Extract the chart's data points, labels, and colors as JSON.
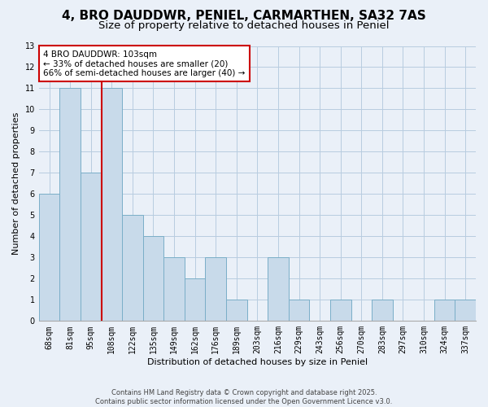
{
  "title": "4, BRO DAUDDWR, PENIEL, CARMARTHEN, SA32 7AS",
  "subtitle": "Size of property relative to detached houses in Peniel",
  "xlabel": "Distribution of detached houses by size in Peniel",
  "ylabel": "Number of detached properties",
  "categories": [
    "68sqm",
    "81sqm",
    "95sqm",
    "108sqm",
    "122sqm",
    "135sqm",
    "149sqm",
    "162sqm",
    "176sqm",
    "189sqm",
    "203sqm",
    "216sqm",
    "229sqm",
    "243sqm",
    "256sqm",
    "270sqm",
    "283sqm",
    "297sqm",
    "310sqm",
    "324sqm",
    "337sqm"
  ],
  "values": [
    6,
    11,
    7,
    11,
    5,
    4,
    3,
    2,
    3,
    1,
    0,
    3,
    1,
    0,
    1,
    0,
    1,
    0,
    0,
    1,
    1
  ],
  "bar_color": "#c8daea",
  "bar_edge_color": "#7aaec8",
  "vline_x": 2.5,
  "vline_color": "#cc0000",
  "annotation_line1": "4 BRO DAUDDWR: 103sqm",
  "annotation_line2": "← 33% of detached houses are smaller (20)",
  "annotation_line3": "66% of semi-detached houses are larger (40) →",
  "annotation_box_color": "white",
  "annotation_box_edgecolor": "#cc0000",
  "ylim": [
    0,
    13
  ],
  "yticks": [
    0,
    1,
    2,
    3,
    4,
    5,
    6,
    7,
    8,
    9,
    10,
    11,
    12,
    13
  ],
  "grid_color": "#b8cce0",
  "background_color": "#eaf0f8",
  "footnote": "Contains HM Land Registry data © Crown copyright and database right 2025.\nContains public sector information licensed under the Open Government Licence v3.0.",
  "title_fontsize": 11,
  "subtitle_fontsize": 9.5,
  "label_fontsize": 8,
  "tick_fontsize": 7,
  "annotation_fontsize": 7.5,
  "footnote_fontsize": 6
}
